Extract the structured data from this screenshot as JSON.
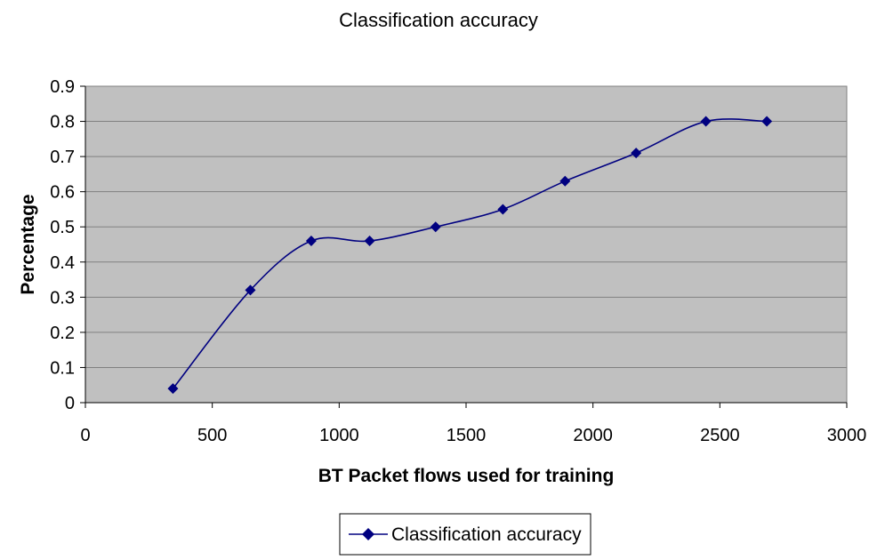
{
  "chart_data": {
    "type": "line",
    "title": "Classification accuracy",
    "xlabel": "BT Packet flows used for training",
    "ylabel": "Percentage",
    "xlim": [
      0,
      3000
    ],
    "ylim": [
      0,
      0.9
    ],
    "x_ticks": [
      "0",
      "500",
      "1000",
      "1500",
      "2000",
      "2500",
      "3000"
    ],
    "y_ticks": [
      "0",
      "0.1",
      "0.2",
      "0.3",
      "0.4",
      "0.5",
      "0.6",
      "0.7",
      "0.8",
      "0.9"
    ],
    "grid": "horizontal",
    "legend_position": "bottom",
    "smoothed": true,
    "marker": "diamond",
    "series": [
      {
        "name": "Classification accuracy",
        "x": [
          345,
          650,
          890,
          1120,
          1380,
          1645,
          1890,
          2170,
          2445,
          2685
        ],
        "values": [
          0.04,
          0.32,
          0.46,
          0.46,
          0.5,
          0.55,
          0.63,
          0.71,
          0.8,
          0.8
        ],
        "color": "#000080"
      }
    ],
    "plot_background": "#c0c0c0",
    "grid_color": "#808080"
  }
}
